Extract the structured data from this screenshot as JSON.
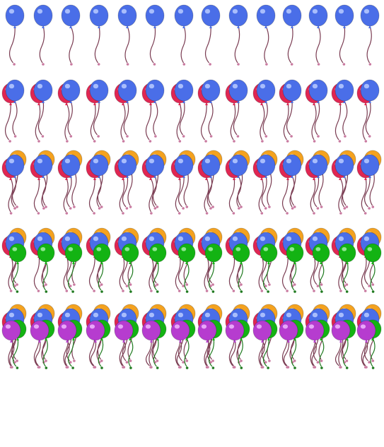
{
  "sheet": {
    "title": "",
    "background": "#ffffff",
    "rows": 5,
    "columns": 14
  },
  "colors": {
    "blue": "#4a6ee8",
    "blue_highlight": "#b9cbff",
    "red": "#e02652",
    "red_highlight": "#ffb3c2",
    "orange": "#f4a21f",
    "orange_highlight": "#ffe0a3",
    "green": "#13b313",
    "green_highlight": "#a8f0a8",
    "purple": "#b63ccf",
    "purple_highlight": "#f0b8ff",
    "string": "#7a3c52",
    "string_green": "#1f7a1f"
  },
  "rows": [
    {
      "name": "one-balloon-row",
      "balloons": [
        "blue"
      ]
    },
    {
      "name": "two-balloon-row",
      "balloons": [
        "red",
        "blue"
      ]
    },
    {
      "name": "three-balloon-row",
      "balloons": [
        "orange",
        "red",
        "blue"
      ]
    },
    {
      "name": "four-balloon-row",
      "balloons": [
        "orange",
        "red",
        "blue",
        "green"
      ]
    },
    {
      "name": "five-balloon-row",
      "balloons": [
        "orange",
        "red",
        "blue",
        "green",
        "purple"
      ]
    }
  ]
}
